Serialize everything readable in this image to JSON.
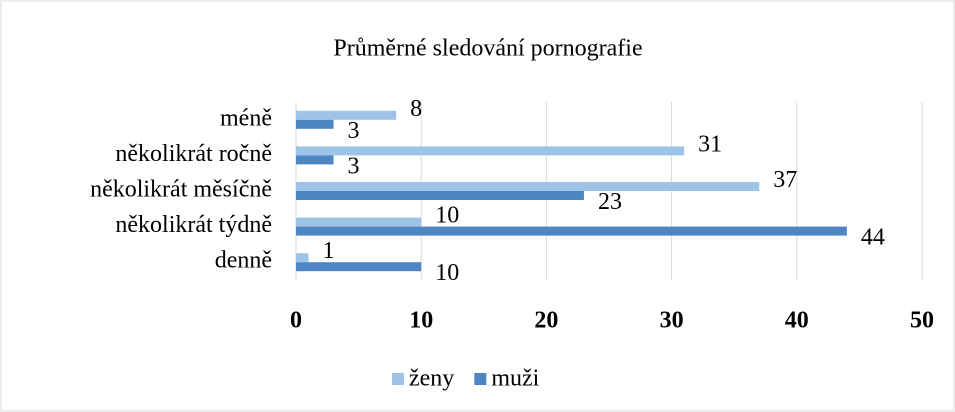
{
  "chart_data": {
    "type": "bar",
    "orientation": "horizontal",
    "title": "Průměrné sledování pornografie",
    "categories": [
      "méně",
      "několikrát ročně",
      "několikrát měsíčně",
      "několikrát týdně",
      "denně"
    ],
    "series": [
      {
        "name": "ženy",
        "color": "#9dc3e6",
        "values": [
          8,
          31,
          37,
          10,
          1
        ]
      },
      {
        "name": "muži",
        "color": "#4e86c3",
        "values": [
          3,
          3,
          23,
          44,
          10
        ]
      }
    ],
    "xlim": [
      0,
      50
    ],
    "xticks": [
      0,
      10,
      20,
      30,
      40,
      50
    ],
    "grid": true,
    "legend": "bottom"
  }
}
